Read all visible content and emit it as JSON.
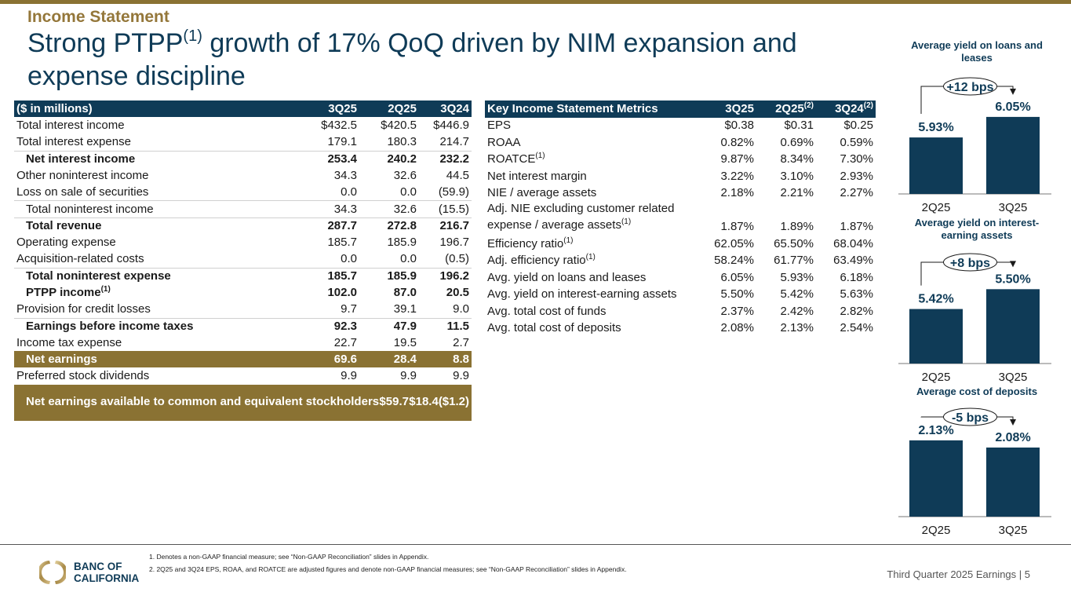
{
  "header": {
    "section": "Income Statement",
    "headline_pre": "Strong PTPP",
    "headline_sup": "(1)",
    "headline_post": " growth of 17% QoQ driven by NIM expansion and expense discipline"
  },
  "financials": {
    "columns": [
      "($ in millions)",
      "3Q25",
      "2Q25",
      "3Q24"
    ],
    "rows": [
      {
        "label": "Total interest income",
        "sup": "",
        "values": [
          "$432.5",
          "$420.5",
          "$446.9"
        ],
        "style": ""
      },
      {
        "label": "Total interest expense",
        "sup": "",
        "values": [
          "179.1",
          "180.3",
          "214.7"
        ],
        "style": ""
      },
      {
        "label": "Net interest income",
        "sup": "",
        "values": [
          "253.4",
          "240.2",
          "232.2"
        ],
        "style": "bold indent sep"
      },
      {
        "label": "Other noninterest income",
        "sup": "",
        "values": [
          "34.3",
          "32.6",
          "44.5"
        ],
        "style": ""
      },
      {
        "label": "Loss on sale of securities",
        "sup": "",
        "values": [
          "0.0",
          "0.0",
          "(59.9)"
        ],
        "style": ""
      },
      {
        "label": "Total noninterest income",
        "sup": "",
        "values": [
          "34.3",
          "32.6",
          "(15.5)"
        ],
        "style": "indent sep"
      },
      {
        "label": "Total revenue",
        "sup": "",
        "values": [
          "287.7",
          "272.8",
          "216.7"
        ],
        "style": "bold indent sep"
      },
      {
        "label": "Operating expense",
        "sup": "",
        "values": [
          "185.7",
          "185.9",
          "196.7"
        ],
        "style": ""
      },
      {
        "label": "Acquisition-related costs",
        "sup": "",
        "values": [
          "0.0",
          "0.0",
          "(0.5)"
        ],
        "style": ""
      },
      {
        "label": "Total noninterest expense",
        "sup": "",
        "values": [
          "185.7",
          "185.9",
          "196.2"
        ],
        "style": "bold indent sep"
      },
      {
        "label": "PTPP income",
        "sup": "(1)",
        "values": [
          "102.0",
          "87.0",
          "20.5"
        ],
        "style": "bold indent"
      },
      {
        "label": "Provision for credit losses",
        "sup": "",
        "values": [
          "9.7",
          "39.1",
          "9.0"
        ],
        "style": ""
      },
      {
        "label": "Earnings before income taxes",
        "sup": "",
        "values": [
          "92.3",
          "47.9",
          "11.5"
        ],
        "style": "bold indent sep"
      },
      {
        "label": "Income tax expense",
        "sup": "",
        "values": [
          "22.7",
          "19.5",
          "2.7"
        ],
        "style": ""
      },
      {
        "label": "Net earnings",
        "sup": "",
        "values": [
          "69.6",
          "28.4",
          "8.8"
        ],
        "style": "gold indent"
      },
      {
        "label": "Preferred stock dividends",
        "sup": "",
        "values": [
          "9.9",
          "9.9",
          "9.9"
        ],
        "style": ""
      },
      {
        "label": "Net earnings available to common and equivalent stockholders",
        "sup": "",
        "values": [
          "$59.7",
          "$18.4",
          "($1.2)"
        ],
        "style": "gold indent tall"
      }
    ]
  },
  "metrics": {
    "columns": [
      "Key Income Statement Metrics",
      "3Q25",
      "2Q25",
      "3Q24"
    ],
    "column_sups": [
      "",
      "",
      "(2)",
      "(2)"
    ],
    "rows": [
      {
        "label": "EPS",
        "sup": "",
        "values": [
          "$0.38",
          "$0.31",
          "$0.25"
        ],
        "style": ""
      },
      {
        "label": "ROAA",
        "sup": "",
        "values": [
          "0.82%",
          "0.69%",
          "0.59%"
        ],
        "style": ""
      },
      {
        "label": "ROATCE",
        "sup": "(1)",
        "values": [
          "9.87%",
          "8.34%",
          "7.30%"
        ],
        "style": ""
      },
      {
        "label": "Net interest margin",
        "sup": "",
        "values": [
          "3.22%",
          "3.10%",
          "2.93%"
        ],
        "style": ""
      },
      {
        "label": "NIE / average assets",
        "sup": "",
        "values": [
          "2.18%",
          "2.21%",
          "2.27%"
        ],
        "style": ""
      },
      {
        "label": "Adj. NIE excluding customer related expense / average assets",
        "sup": "(1)",
        "values": [
          "1.87%",
          "1.89%",
          "1.87%"
        ],
        "style": "two-line"
      },
      {
        "label": "Efficiency ratio",
        "sup": "(1)",
        "values": [
          "62.05%",
          "65.50%",
          "68.04%"
        ],
        "style": ""
      },
      {
        "label": "Adj. efficiency ratio",
        "sup": "(1)",
        "values": [
          "58.24%",
          "61.77%",
          "63.49%"
        ],
        "style": ""
      },
      {
        "label": "Avg. yield on loans and leases",
        "sup": "",
        "values": [
          "6.05%",
          "5.93%",
          "6.18%"
        ],
        "style": ""
      },
      {
        "label": "Avg. yield on interest-earning assets",
        "sup": "",
        "values": [
          "5.50%",
          "5.42%",
          "5.63%"
        ],
        "style": ""
      },
      {
        "label": "Avg. total cost of funds",
        "sup": "",
        "values": [
          "2.37%",
          "2.42%",
          "2.82%"
        ],
        "style": ""
      },
      {
        "label": "Avg. total cost of deposits",
        "sup": "",
        "values": [
          "2.08%",
          "2.13%",
          "2.54%"
        ],
        "style": ""
      }
    ]
  },
  "chart_data": [
    {
      "type": "bar",
      "title": "Average yield on loans and leases",
      "categories": [
        "2Q25",
        "3Q25"
      ],
      "values": [
        5.93,
        6.05
      ],
      "value_labels": [
        "5.93%",
        "6.05%"
      ],
      "annotation": "+12 bps",
      "ylim": [
        5.6,
        6.1
      ],
      "xlabel": "",
      "ylabel": "",
      "color": "#0f3b57"
    },
    {
      "type": "bar",
      "title": "Average yield on interest-earning assets",
      "categories": [
        "2Q25",
        "3Q25"
      ],
      "values": [
        5.42,
        5.5
      ],
      "value_labels": [
        "5.42%",
        "5.50%"
      ],
      "annotation": "+8 bps",
      "ylim": [
        5.2,
        5.52
      ],
      "xlabel": "",
      "ylabel": "",
      "color": "#0f3b57"
    },
    {
      "type": "bar",
      "title": "Average cost of deposits",
      "categories": [
        "2Q25",
        "3Q25"
      ],
      "values": [
        2.13,
        2.08
      ],
      "value_labels": [
        "2.13%",
        "2.08%"
      ],
      "annotation": "-5 bps",
      "ylim": [
        1.6,
        2.14
      ],
      "xlabel": "",
      "ylabel": "",
      "color": "#0f3b57"
    }
  ],
  "footer": {
    "footnotes": [
      "1.  Denotes a non-GAAP financial measure; see “Non-GAAP Reconciliation” slides in Appendix.",
      "2.  2Q25 and 3Q24 EPS, ROAA, and ROATCE are adjusted figures and denote non-GAAP financial measures; see “Non-GAAP Reconciliation” slides in Appendix."
    ],
    "logo_line1": "BANC OF",
    "logo_line2": "CALIFORNIA",
    "page_label": "Third Quarter 2025 Earnings |  5"
  },
  "colors": {
    "navy": "#0f3b57",
    "gold": "#8a7233",
    "gold_text": "#94773a"
  }
}
